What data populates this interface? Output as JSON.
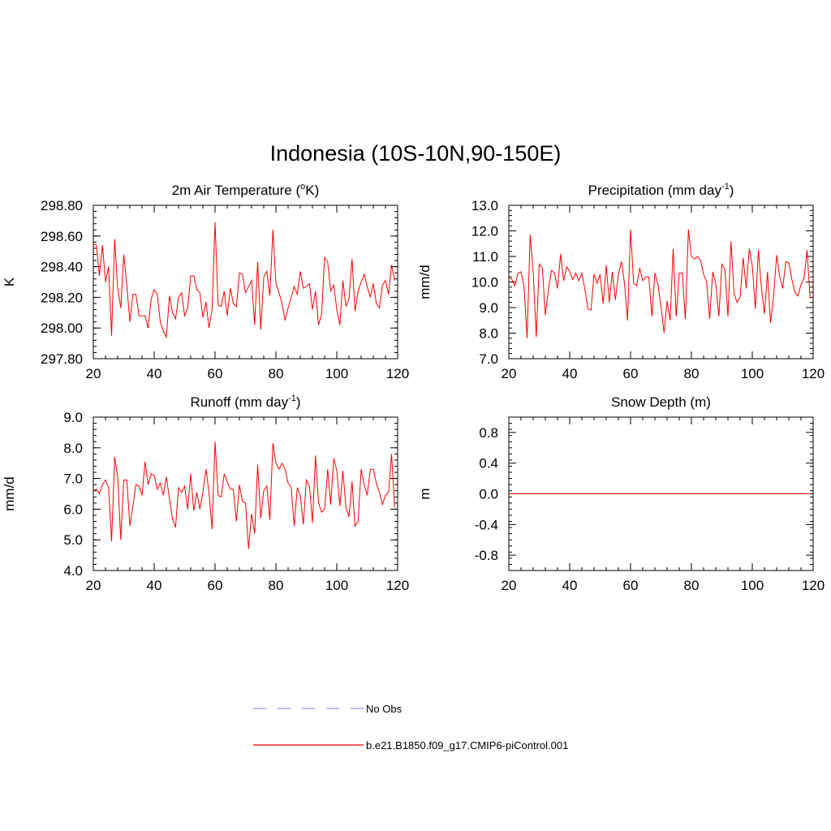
{
  "title": "Indonesia (10S-10N,90-150E)",
  "series_color": "#ff0000",
  "obs_color": "#9999ff",
  "legend": {
    "obs_label": "No Obs",
    "model_label": "b.e21.B1850.f09_g17.CMIP6-piControl.001"
  },
  "chart_data": [
    {
      "type": "line",
      "title": "2m Air Temperature (",
      "title_sup": "o",
      "title_after": "K)",
      "title_close": "",
      "xlabel": "",
      "ylabel": "K",
      "xlim": [
        20,
        120
      ],
      "ylim": [
        297.8,
        298.8
      ],
      "xticks": [
        20,
        40,
        60,
        80,
        100,
        120
      ],
      "yticks": [
        297.8,
        298.0,
        298.2,
        298.4,
        298.6,
        298.8
      ],
      "ytick_labels": [
        "297.80",
        "298.00",
        "298.20",
        "298.40",
        "298.60",
        "298.80"
      ],
      "yminor": 0.04,
      "x_start": 20,
      "values": [
        298.55,
        298.54,
        298.34,
        298.54,
        298.3,
        298.4,
        297.95,
        298.58,
        298.26,
        298.13,
        298.48,
        298.28,
        298.04,
        298.22,
        298.22,
        298.08,
        298.08,
        298.08,
        298.0,
        298.19,
        298.25,
        298.22,
        298.04,
        297.98,
        297.94,
        298.21,
        298.1,
        298.06,
        298.2,
        298.23,
        298.08,
        298.13,
        298.34,
        298.34,
        298.25,
        298.23,
        298.07,
        298.17,
        298.0,
        298.12,
        298.69,
        298.15,
        298.14,
        298.24,
        298.08,
        298.26,
        298.16,
        298.14,
        298.36,
        298.35,
        298.23,
        298.27,
        298.31,
        298.02,
        298.43,
        297.99,
        298.33,
        298.37,
        298.21,
        298.64,
        298.29,
        298.23,
        298.16,
        298.05,
        298.13,
        298.2,
        298.27,
        298.22,
        298.37,
        298.26,
        298.27,
        298.29,
        298.12,
        298.24,
        298.02,
        298.09,
        298.46,
        298.43,
        298.24,
        298.28,
        298.12,
        298.02,
        298.31,
        298.14,
        298.19,
        298.45,
        298.11,
        298.24,
        298.3,
        298.35,
        298.27,
        298.2,
        298.29,
        298.16,
        298.13,
        298.28,
        298.31,
        298.22,
        298.41,
        298.31
      ]
    },
    {
      "type": "line",
      "title": "Precipitation (mm day",
      "title_sup": "-1",
      "title_after": ")",
      "title_close": "",
      "xlabel": "",
      "ylabel": "mm/d",
      "xlim": [
        20,
        120
      ],
      "ylim": [
        7.0,
        13.0
      ],
      "xticks": [
        20,
        40,
        60,
        80,
        100,
        120
      ],
      "yticks": [
        7,
        8,
        9,
        10,
        11,
        12,
        13
      ],
      "ytick_labels": [
        "7.0",
        "8.0",
        "9.0",
        "10.0",
        "11.0",
        "12.0",
        "13.0"
      ],
      "yminor": 0.2,
      "x_start": 20,
      "values": [
        10.2,
        10.1,
        9.85,
        10.35,
        10.4,
        9.8,
        7.8,
        11.85,
        10.4,
        7.85,
        10.7,
        10.55,
        8.7,
        9.7,
        10.45,
        10.35,
        9.75,
        11.1,
        10.05,
        10.6,
        10.4,
        10.1,
        10.35,
        10.05,
        10.35,
        9.7,
        8.95,
        8.9,
        10.3,
        9.95,
        10.3,
        9.15,
        10.65,
        9.2,
        10.4,
        9.3,
        10.3,
        10.8,
        9.95,
        8.5,
        12.05,
        9.95,
        9.85,
        10.55,
        10.05,
        10.2,
        10.2,
        8.65,
        10.35,
        9.9,
        9.05,
        8.0,
        9.25,
        8.5,
        11.3,
        8.65,
        10.35,
        10.35,
        8.55,
        12.05,
        11.0,
        10.9,
        11.0,
        10.85,
        10.3,
        10.0,
        8.55,
        10.4,
        9.95,
        8.65,
        10.7,
        10.5,
        8.65,
        11.6,
        9.55,
        9.2,
        9.4,
        10.95,
        9.75,
        11.3,
        10.65,
        8.95,
        11.25,
        9.75,
        8.75,
        10.4,
        8.4,
        9.45,
        11.05,
        10.2,
        9.75,
        10.8,
        10.75,
        10.1,
        9.6,
        9.45,
        9.9,
        10.15,
        11.25,
        9.35
      ]
    },
    {
      "type": "line",
      "title": "Runoff (mm day",
      "title_sup": "-1",
      "title_after": ")",
      "title_close": "",
      "xlabel": "",
      "ylabel": "mm/d",
      "xlim": [
        20,
        120
      ],
      "ylim": [
        4.0,
        9.0
      ],
      "xticks": [
        20,
        40,
        60,
        80,
        100,
        120
      ],
      "yticks": [
        4,
        5,
        6,
        7,
        8,
        9
      ],
      "ytick_labels": [
        "4.0",
        "5.0",
        "6.0",
        "7.0",
        "8.0",
        "9.0"
      ],
      "yminor": 0.2,
      "x_start": 20,
      "values": [
        6.6,
        6.65,
        6.5,
        6.8,
        6.95,
        6.7,
        4.95,
        7.7,
        7.05,
        5.0,
        6.95,
        6.95,
        5.45,
        6.1,
        6.8,
        6.75,
        6.45,
        7.55,
        6.8,
        7.15,
        7.1,
        6.65,
        6.85,
        6.45,
        7.05,
        6.35,
        5.7,
        5.4,
        6.7,
        6.55,
        6.75,
        6.0,
        7.15,
        5.95,
        6.55,
        6.0,
        6.55,
        7.3,
        6.55,
        5.35,
        8.2,
        6.45,
        6.4,
        7.15,
        6.9,
        6.65,
        6.65,
        5.6,
        6.8,
        6.25,
        6.2,
        4.7,
        5.85,
        5.2,
        7.45,
        5.7,
        6.6,
        6.75,
        5.65,
        8.15,
        7.5,
        7.3,
        7.5,
        7.3,
        6.85,
        6.7,
        5.45,
        6.7,
        6.45,
        5.5,
        6.95,
        6.75,
        5.55,
        7.75,
        6.2,
        5.9,
        6.0,
        7.3,
        6.15,
        7.65,
        7.25,
        6.1,
        7.25,
        6.05,
        5.75,
        6.9,
        5.45,
        5.6,
        7.3,
        6.8,
        6.45,
        7.3,
        7.3,
        6.85,
        6.55,
        6.15,
        6.45,
        6.55,
        7.8,
        6.05
      ]
    },
    {
      "type": "line",
      "title": "Snow Depth (m)",
      "title_sup": "",
      "title_after": "",
      "title_close": "",
      "xlabel": "",
      "ylabel": "m",
      "xlim": [
        20,
        120
      ],
      "ylim": [
        -1.0,
        1.0
      ],
      "xticks": [
        20,
        40,
        60,
        80,
        100,
        120
      ],
      "yticks": [
        -0.8,
        -0.4,
        0.0,
        0.4,
        0.8
      ],
      "ytick_labels": [
        "-0.8",
        "-0.4",
        "0.0",
        "0.4",
        "0.8"
      ],
      "yminor": 0.08,
      "x_start": 20,
      "values": [
        0,
        0,
        0,
        0,
        0,
        0,
        0,
        0,
        0,
        0,
        0,
        0,
        0,
        0,
        0,
        0,
        0,
        0,
        0,
        0,
        0,
        0,
        0,
        0,
        0,
        0,
        0,
        0,
        0,
        0,
        0,
        0,
        0,
        0,
        0,
        0,
        0,
        0,
        0,
        0,
        0,
        0,
        0,
        0,
        0,
        0,
        0,
        0,
        0,
        0,
        0,
        0,
        0,
        0,
        0,
        0,
        0,
        0,
        0,
        0,
        0,
        0,
        0,
        0,
        0,
        0,
        0,
        0,
        0,
        0,
        0,
        0,
        0,
        0,
        0,
        0,
        0,
        0,
        0,
        0,
        0,
        0,
        0,
        0,
        0,
        0,
        0,
        0,
        0,
        0,
        0,
        0,
        0,
        0,
        0,
        0,
        0,
        0,
        0,
        0
      ]
    }
  ]
}
